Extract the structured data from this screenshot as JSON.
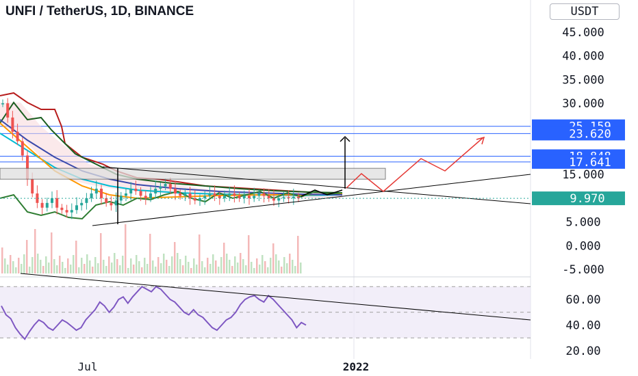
{
  "header": {
    "title": "UNFI / TetherUS, 1D, BINANCE",
    "currency": "USDT"
  },
  "colors": {
    "price_box": "#2962ff",
    "last_price_box": "#26a69a",
    "rsi_line": "#7e57c2",
    "rsi_band": "#ede7f6",
    "target_arrows": "#e53935",
    "trendlines": "#000000",
    "level_lines": "#2962ff"
  },
  "chart_data": [
    {
      "type": "candlestick",
      "title": "UNFI / TetherUS, 1D, BINANCE",
      "y_ticks": [
        "45.000",
        "40.000",
        "35.000",
        "30.000",
        "15.000",
        "5.000",
        "0.000",
        "-5.000"
      ],
      "ylim": [
        -5,
        47
      ],
      "x_ticks": [
        "Jul",
        "2022"
      ],
      "levels": [
        {
          "label": "25.159",
          "value": 25.159
        },
        {
          "label": "23.620",
          "value": 23.62
        },
        {
          "label": "18.848",
          "value": 18.848
        },
        {
          "label": "17.641",
          "value": 17.641
        }
      ],
      "last_price": {
        "label": "9.970",
        "value": 9.97
      },
      "close_series": [
        30,
        27,
        24,
        22,
        19,
        14,
        11,
        9,
        8,
        9,
        10,
        8,
        7.5,
        7,
        7.5,
        8.5,
        9,
        10,
        11,
        12,
        10,
        9,
        8.5,
        9.5,
        10.5,
        11,
        12,
        11.5,
        10.5,
        10,
        11,
        12,
        12.5,
        13,
        12,
        11,
        10.5,
        11,
        10,
        9.5,
        10,
        10.5,
        11,
        10.5,
        10,
        10.5,
        11,
        10.5,
        10,
        10.5,
        10,
        10.5,
        11,
        10.5,
        10,
        9.5,
        10,
        10.2,
        10,
        10.3,
        9.97
      ]
    },
    {
      "type": "line",
      "name": "RSI",
      "y_ticks": [
        "60.00",
        "40.00",
        "20.00"
      ],
      "ylim": [
        15,
        85
      ],
      "bands": [
        70,
        50,
        30
      ],
      "values": [
        55,
        48,
        45,
        38,
        33,
        29,
        35,
        40,
        44,
        42,
        38,
        36,
        40,
        44,
        42,
        39,
        36,
        38,
        44,
        48,
        52,
        58,
        55,
        50,
        54,
        60,
        62,
        57,
        62,
        66,
        70,
        68,
        66,
        70,
        68,
        64,
        60,
        58,
        54,
        50,
        48,
        52,
        48,
        46,
        42,
        38,
        36,
        40,
        44,
        46,
        50,
        56,
        60,
        62,
        63,
        60,
        58,
        63,
        60,
        56,
        52,
        48,
        44,
        38,
        42,
        40
      ]
    }
  ]
}
